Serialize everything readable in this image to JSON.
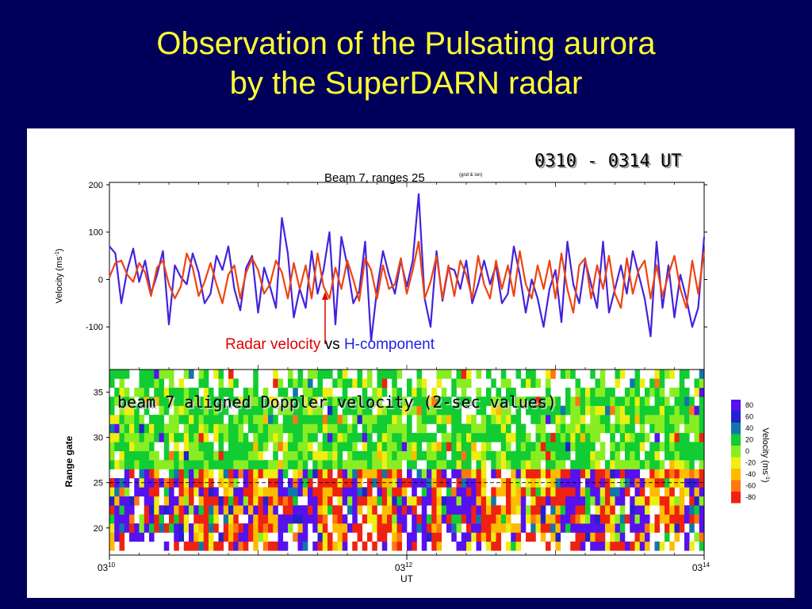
{
  "slide": {
    "title_line1": "Observation of the Pulsating aurora",
    "title_line2": "by the SuperDARN radar",
    "time_range": "0310 - 0314 UT",
    "annotation_part1": "Radar velocity",
    "annotation_part2": " vs ",
    "annotation_part3": "H-component",
    "annotation_color1": "#e00000",
    "annotation_color3": "#2020ee",
    "overlay_label": "beam 7 aligned Doppler velocity (2-sec values)"
  },
  "chart_data": [
    {
      "type": "line",
      "title": "Beam 7, ranges 25",
      "title_sub": "(gnd & ion)",
      "ylabel": "Velocity (ms",
      "ylabel_sup": "-1",
      "ylabel_close": ")",
      "ylim": [
        -190,
        205
      ],
      "xlim": [
        0,
        4
      ],
      "yticks": [
        200,
        100,
        0,
        -100
      ],
      "series": [
        {
          "color": "#4422dd",
          "x": [
            0.0,
            0.04,
            0.08,
            0.12,
            0.16,
            0.2,
            0.24,
            0.28,
            0.32,
            0.36,
            0.4,
            0.44,
            0.48,
            0.52,
            0.56,
            0.6,
            0.64,
            0.68,
            0.72,
            0.76,
            0.8,
            0.84,
            0.88,
            0.92,
            0.96,
            1.0,
            1.04,
            1.08,
            1.12,
            1.16,
            1.2,
            1.24,
            1.28,
            1.32,
            1.36,
            1.4,
            1.44,
            1.48,
            1.52,
            1.56,
            1.6,
            1.64,
            1.68,
            1.72,
            1.76,
            1.8,
            1.84,
            1.88,
            1.92,
            1.96,
            2.0,
            2.04,
            2.08,
            2.12,
            2.16,
            2.2,
            2.24,
            2.28,
            2.32,
            2.36,
            2.4,
            2.44,
            2.48,
            2.52,
            2.56,
            2.6,
            2.64,
            2.68,
            2.72,
            2.76,
            2.8,
            2.84,
            2.88,
            2.92,
            2.96,
            3.0,
            3.04,
            3.08,
            3.12,
            3.16,
            3.2,
            3.24,
            3.28,
            3.32,
            3.36,
            3.4,
            3.44,
            3.48,
            3.52,
            3.56,
            3.6,
            3.64,
            3.68,
            3.72,
            3.76,
            3.8,
            3.84,
            3.88,
            3.92,
            3.96,
            4.0
          ],
          "values": [
            70,
            55,
            -50,
            20,
            65,
            -5,
            40,
            -30,
            10,
            60,
            -95,
            30,
            5,
            -10,
            55,
            15,
            -50,
            -30,
            50,
            20,
            70,
            -20,
            -65,
            25,
            50,
            -70,
            25,
            -15,
            -60,
            130,
            55,
            -80,
            -20,
            -60,
            60,
            -30,
            20,
            100,
            -95,
            90,
            30,
            -50,
            -25,
            80,
            -130,
            -20,
            60,
            10,
            -30,
            40,
            -15,
            40,
            180,
            -40,
            -100,
            60,
            -45,
            25,
            20,
            -20,
            40,
            -50,
            -10,
            40,
            -10,
            30,
            -50,
            -30,
            70,
            10,
            -70,
            0,
            -40,
            -100,
            -20,
            20,
            -90,
            80,
            -10,
            -50,
            40,
            -10,
            -60,
            80,
            -70,
            -20,
            30,
            -30,
            60,
            10,
            -40,
            -120,
            80,
            -60,
            30,
            -80,
            10,
            -40,
            -100,
            -60,
            90
          ]
        },
        {
          "color": "#ee4411",
          "x": [
            0.0,
            0.04,
            0.08,
            0.12,
            0.16,
            0.2,
            0.24,
            0.28,
            0.32,
            0.36,
            0.4,
            0.44,
            0.48,
            0.52,
            0.56,
            0.6,
            0.64,
            0.68,
            0.72,
            0.76,
            0.8,
            0.84,
            0.88,
            0.92,
            0.96,
            1.0,
            1.04,
            1.08,
            1.12,
            1.16,
            1.2,
            1.24,
            1.28,
            1.32,
            1.36,
            1.4,
            1.44,
            1.48,
            1.52,
            1.56,
            1.6,
            1.64,
            1.68,
            1.72,
            1.76,
            1.8,
            1.84,
            1.88,
            1.92,
            1.96,
            2.0,
            2.04,
            2.08,
            2.12,
            2.16,
            2.2,
            2.24,
            2.28,
            2.32,
            2.36,
            2.4,
            2.44,
            2.48,
            2.52,
            2.56,
            2.6,
            2.64,
            2.68,
            2.72,
            2.76,
            2.8,
            2.84,
            2.88,
            2.92,
            2.96,
            3.0,
            3.04,
            3.08,
            3.12,
            3.16,
            3.2,
            3.24,
            3.28,
            3.32,
            3.36,
            3.4,
            3.44,
            3.48,
            3.52,
            3.56,
            3.6,
            3.64,
            3.68,
            3.72,
            3.76,
            3.8,
            3.84,
            3.88,
            3.92,
            3.96,
            4.0
          ],
          "values": [
            5,
            35,
            40,
            10,
            -5,
            35,
            15,
            -35,
            25,
            40,
            -10,
            -40,
            -15,
            55,
            25,
            -35,
            -5,
            35,
            -10,
            -50,
            10,
            30,
            -40,
            15,
            45,
            20,
            -30,
            -10,
            40,
            15,
            -40,
            35,
            -20,
            30,
            -40,
            55,
            -15,
            -40,
            25,
            -20,
            40,
            0,
            -45,
            45,
            20,
            -40,
            30,
            -20,
            -10,
            45,
            -30,
            20,
            80,
            -40,
            -5,
            50,
            -40,
            30,
            -35,
            40,
            10,
            -40,
            50,
            -10,
            -40,
            40,
            -20,
            30,
            -35,
            60,
            -10,
            -40,
            30,
            -20,
            40,
            -40,
            55,
            -20,
            -70,
            30,
            45,
            -40,
            30,
            -20,
            50,
            -30,
            -60,
            45,
            -30,
            20,
            40,
            -40,
            30,
            -35,
            10,
            50,
            -20,
            -60,
            40,
            -30,
            60
          ]
        }
      ]
    },
    {
      "type": "heatmap",
      "ylabel": "Range gate",
      "xlabel": "UT",
      "x_ticks": [
        {
          "label": "03",
          "sup": "10",
          "x": 0
        },
        {
          "label": "03",
          "sup": "12",
          "x": 2
        },
        {
          "label": "03",
          "sup": "14",
          "x": 4
        }
      ],
      "yticks": [
        35,
        30,
        25,
        20
      ],
      "ylim": [
        17,
        37.5
      ],
      "reference_line_gate": 25,
      "colorbar_title": "Velocity (ms",
      "colorbar_title_sup": "-1",
      "colorbar_title_close": ")",
      "colorbar": [
        {
          "label": "80",
          "color": "#5511ee"
        },
        {
          "label": "60",
          "color": "#2222cc"
        },
        {
          "label": "40",
          "color": "#1177aa"
        },
        {
          "label": "20",
          "color": "#11cc33"
        },
        {
          "label": "0",
          "color": "#88ee22"
        },
        {
          "label": "-20",
          "color": "#eeee11"
        },
        {
          "label": "-40",
          "color": "#ffbb00"
        },
        {
          "label": "-60",
          "color": "#ff7711"
        },
        {
          "label": "-80",
          "color": "#ee2211"
        }
      ]
    }
  ]
}
